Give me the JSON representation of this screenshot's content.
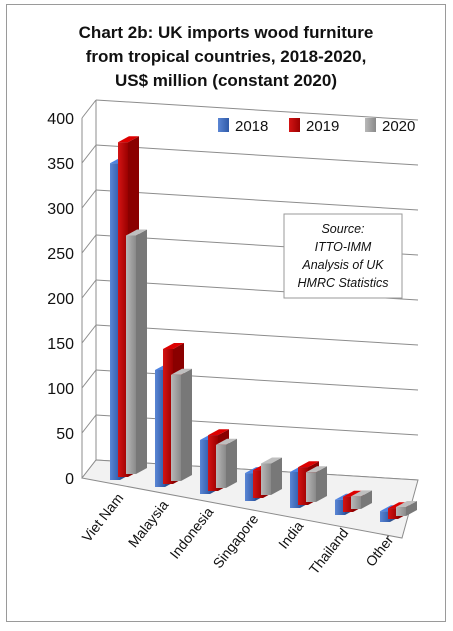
{
  "chart_data": {
    "type": "bar",
    "title_lines": [
      "Chart 2b: UK imports wood furniture",
      "from tropical countries, 2018-2020,",
      "US$ million (constant 2020)"
    ],
    "categories": [
      "Viet Nam",
      "Malaysia",
      "Indonesia",
      "Singapore",
      "India",
      "Thailand",
      "Other"
    ],
    "series": [
      {
        "name": "2018",
        "color": "#4472c4",
        "values": [
          352,
          130,
          60,
          31,
          40,
          17,
          12
        ]
      },
      {
        "name": "2019",
        "color": "#c00000",
        "values": [
          372,
          150,
          62,
          31,
          42,
          17,
          12
        ]
      },
      {
        "name": "2020",
        "color": "#a6a6a6",
        "values": [
          265,
          118,
          48,
          35,
          33,
          14,
          10
        ]
      }
    ],
    "ylim": [
      0,
      400
    ],
    "yticks": [
      0,
      50,
      100,
      150,
      200,
      250,
      300,
      350,
      400
    ],
    "grid": true,
    "legend_position": "top-right",
    "source_note": [
      "Source:",
      "ITTO-IMM",
      "Analysis of UK",
      "HMRC Statistics"
    ]
  }
}
